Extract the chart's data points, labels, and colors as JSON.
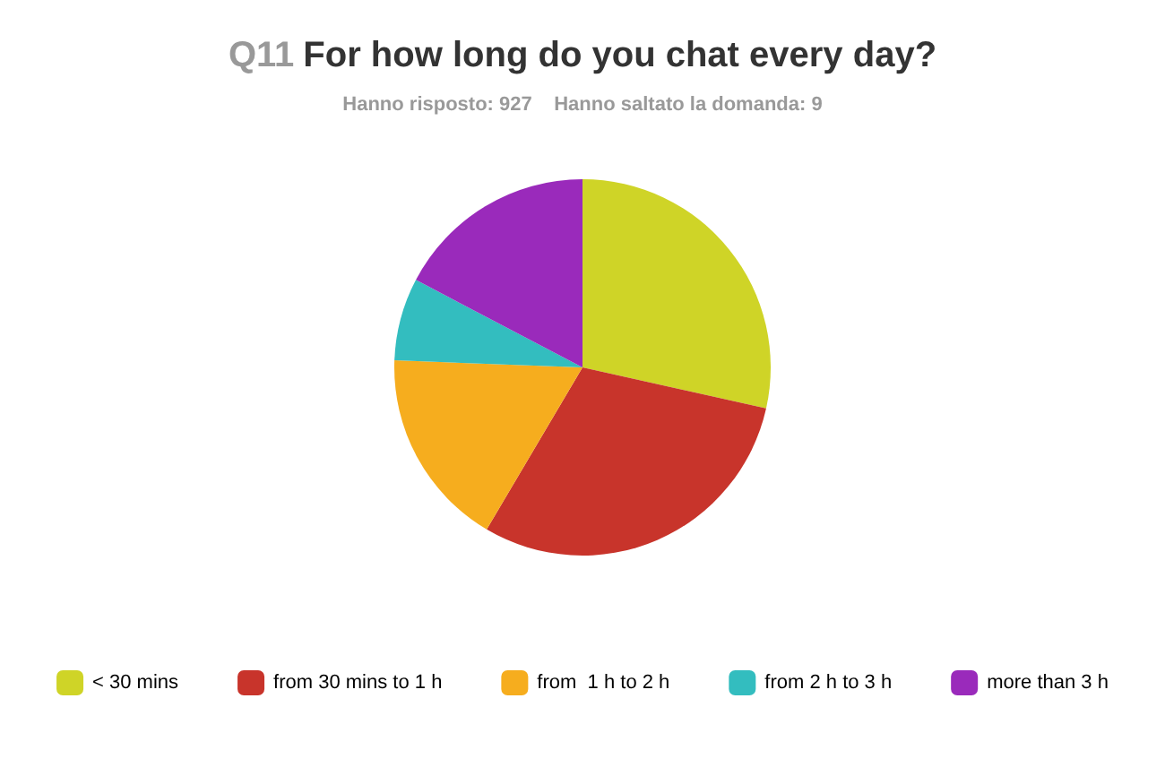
{
  "chart_data": {
    "type": "pie",
    "title": "Q11 For how long do you chat every day?",
    "subtitle": "Hanno risposto: 927    Hanno saltato la domanda: 9",
    "categories": [
      "< 30 mins",
      "from 30 mins to 1 h",
      "from  1 h to 2 h",
      "from 2 h to 3 h",
      "more than 3 h"
    ],
    "values": [
      28.5,
      30,
      17.1,
      7.1,
      17.3
    ],
    "colors": [
      "#cfd427",
      "#c8342b",
      "#f6ad1e",
      "#33bdbf",
      "#9a2abb"
    ],
    "legend": "bottom"
  }
}
